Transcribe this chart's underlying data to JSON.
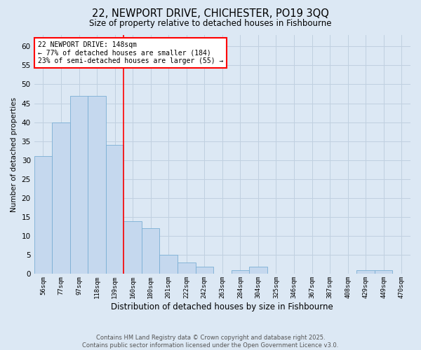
{
  "title_line1": "22, NEWPORT DRIVE, CHICHESTER, PO19 3QQ",
  "title_line2": "Size of property relative to detached houses in Fishbourne",
  "xlabel": "Distribution of detached houses by size in Fishbourne",
  "ylabel": "Number of detached properties",
  "bar_labels": [
    "56sqm",
    "77sqm",
    "97sqm",
    "118sqm",
    "139sqm",
    "160sqm",
    "180sqm",
    "201sqm",
    "222sqm",
    "242sqm",
    "263sqm",
    "284sqm",
    "304sqm",
    "325sqm",
    "346sqm",
    "367sqm",
    "387sqm",
    "408sqm",
    "429sqm",
    "449sqm",
    "470sqm"
  ],
  "bar_values": [
    31,
    40,
    47,
    47,
    34,
    14,
    12,
    5,
    3,
    2,
    0,
    1,
    2,
    0,
    0,
    0,
    0,
    0,
    1,
    1,
    0
  ],
  "bar_color": "#c5d8ee",
  "bar_edgecolor": "#7aafd4",
  "bar_width": 1.0,
  "vline_x": 4.5,
  "vline_color": "red",
  "annotation_text": "22 NEWPORT DRIVE: 148sqm\n← 77% of detached houses are smaller (184)\n23% of semi-detached houses are larger (55) →",
  "annotation_box_facecolor": "white",
  "annotation_box_edgecolor": "red",
  "ylim": [
    0,
    63
  ],
  "yticks": [
    0,
    5,
    10,
    15,
    20,
    25,
    30,
    35,
    40,
    45,
    50,
    55,
    60
  ],
  "grid_color": "#c0d0e0",
  "bg_color": "#dce8f4",
  "footnote": "Contains HM Land Registry data © Crown copyright and database right 2025.\nContains public sector information licensed under the Open Government Licence v3.0."
}
